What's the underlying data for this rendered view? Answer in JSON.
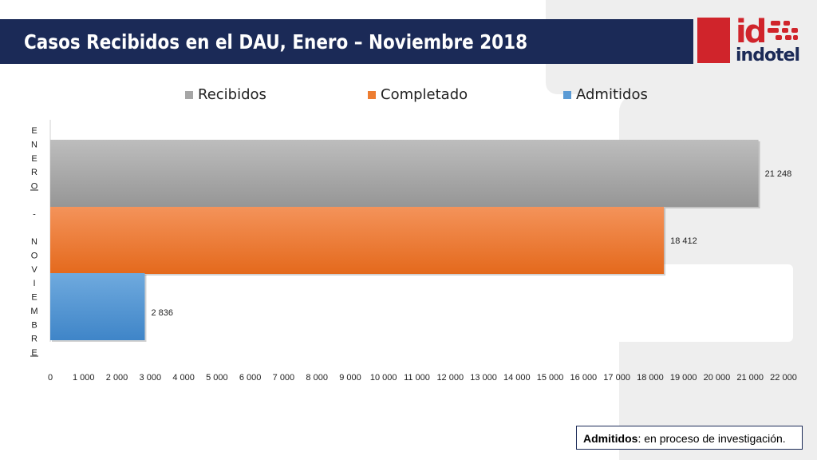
{
  "title": "Casos Recibidos en el DAU, Enero – Noviembre 2018",
  "logo": {
    "mark": "id",
    "word": "indotel"
  },
  "note": {
    "bold": "Admitidos",
    "text": ": en proceso de investigación."
  },
  "colors": {
    "title_bar": "#1b2a57",
    "brand_red": "#d0242b"
  },
  "chart_data": {
    "type": "bar",
    "orientation": "horizontal",
    "categories": [
      "ENERO - NOVIEMBRE"
    ],
    "series": [
      {
        "name": "Recibidos",
        "values": [
          21248
        ],
        "label": "21 248",
        "color": "#a6a6a6"
      },
      {
        "name": "Completado",
        "values": [
          18412
        ],
        "label": "18 412",
        "color": "#ed7d31"
      },
      {
        "name": "Admitidos",
        "values": [
          2836
        ],
        "label": "2 836",
        "color": "#5b9bd5"
      }
    ],
    "xlim": [
      0,
      22000
    ],
    "x_ticks": [
      0,
      1000,
      2000,
      3000,
      4000,
      5000,
      6000,
      7000,
      8000,
      9000,
      10000,
      11000,
      12000,
      13000,
      14000,
      15000,
      16000,
      17000,
      18000,
      19000,
      20000,
      21000,
      22000
    ],
    "x_tick_labels": [
      "0",
      "1 000",
      "2 000",
      "3 000",
      "4 000",
      "5 000",
      "6 000",
      "7 000",
      "8 000",
      "9 000",
      "10 000",
      "11 000",
      "12 000",
      "13 000",
      "14 000",
      "15 000",
      "16 000",
      "17 000",
      "18 000",
      "19 000",
      "20 000",
      "21 000",
      "22 000"
    ],
    "legend": "top",
    "grid": false
  }
}
